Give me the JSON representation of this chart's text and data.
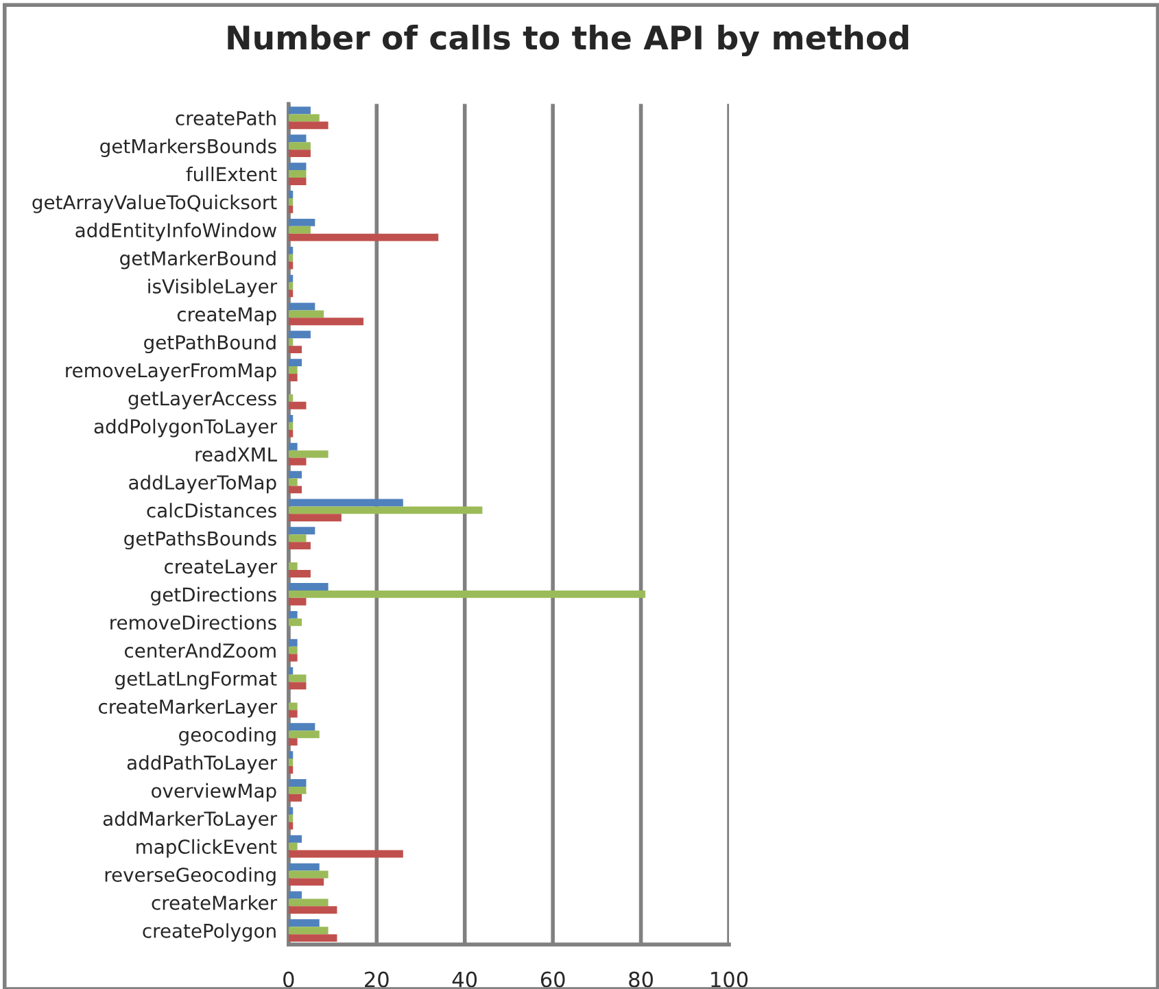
{
  "chart_data": {
    "type": "bar",
    "orientation": "horizontal",
    "title": "Number of calls to the API by method",
    "categories": [
      "createPath",
      "getMarkersBounds",
      "fullExtent",
      "getArrayValueToQuicksort",
      "addEntityInfoWindow",
      "getMarkerBound",
      "isVisibleLayer",
      "createMap",
      "getPathBound",
      "removeLayerFromMap",
      "getLayerAccess",
      "addPolygonToLayer",
      "readXML",
      "addLayerToMap",
      "calcDistances",
      "getPathsBounds",
      "createLayer",
      "getDirections",
      "removeDirections",
      "centerAndZoom",
      "getLatLngFormat",
      "createMarkerLayer",
      "geocoding",
      "addPathToLayer",
      "overviewMap",
      "addMarkerToLayer",
      "mapClickEvent",
      "reverseGeocoding",
      "createMarker",
      "createPolygon"
    ],
    "series": [
      {
        "color": "#4f81bd",
        "values": [
          5,
          4,
          4,
          1,
          6,
          1,
          1,
          6,
          5,
          3,
          null,
          1,
          2,
          3,
          26,
          6,
          null,
          9,
          2,
          2,
          1,
          null,
          6,
          1,
          4,
          1,
          3,
          7,
          3,
          7
        ]
      },
      {
        "color": "#9bbb59",
        "values": [
          7,
          5,
          4,
          1,
          5,
          1,
          1,
          8,
          1,
          2,
          1,
          1,
          9,
          2,
          44,
          4,
          2,
          81,
          3,
          2,
          4,
          2,
          7,
          1,
          4,
          1,
          2,
          9,
          9,
          9
        ]
      },
      {
        "color": "#c0504d",
        "values": [
          9,
          5,
          4,
          1,
          34,
          1,
          1,
          17,
          3,
          2,
          4,
          1,
          4,
          3,
          12,
          5,
          5,
          4,
          null,
          2,
          4,
          2,
          2,
          1,
          3,
          1,
          26,
          8,
          11,
          11
        ]
      }
    ],
    "xlim": [
      0,
      100
    ],
    "xticks": [
      0,
      20,
      40,
      60,
      80,
      100
    ],
    "grid": "x"
  }
}
